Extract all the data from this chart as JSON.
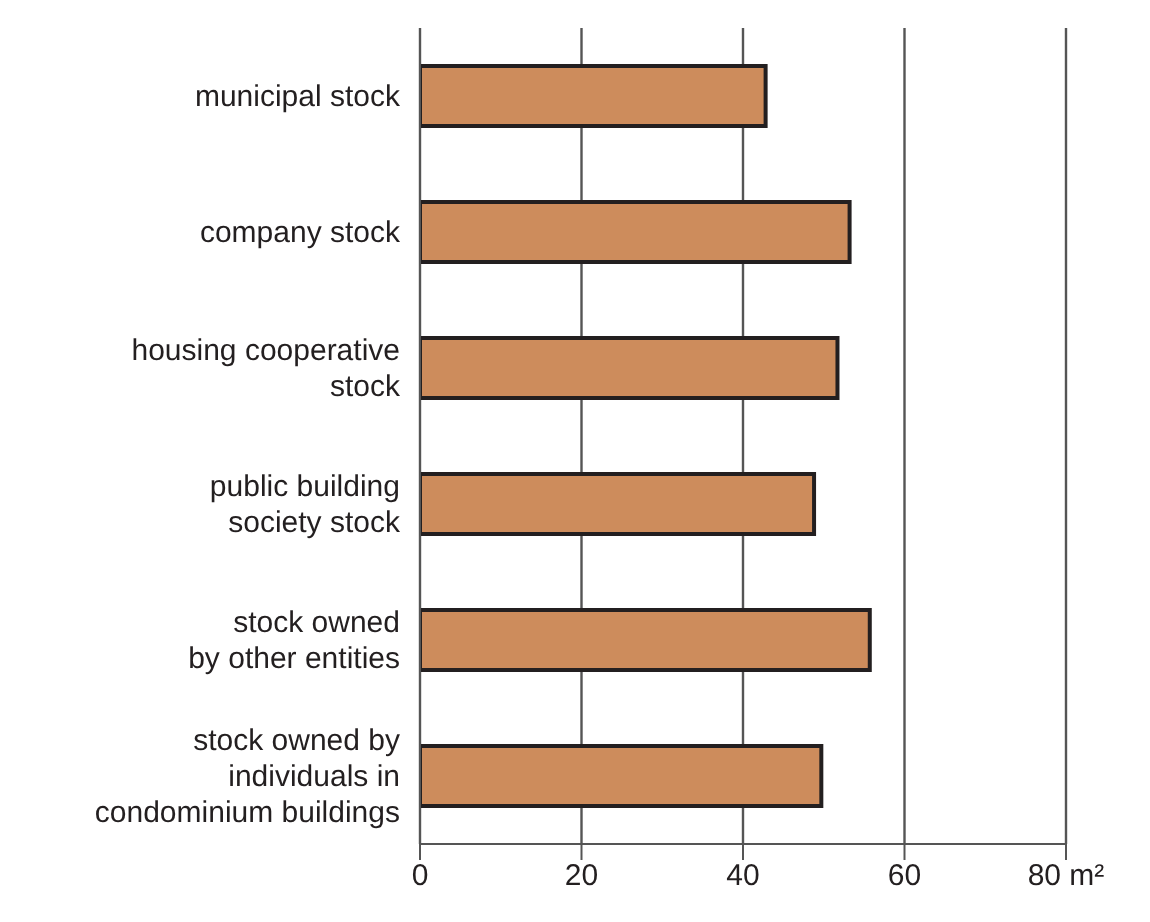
{
  "chart_data": {
    "type": "bar",
    "orientation": "horizontal",
    "categories": [
      "municipal stock",
      "company stock",
      "housing cooperative\nstock",
      "public building\nsociety stock",
      "stock owned\nby other entities",
      "stock owned by\nindividuals in\ncondominium buildings"
    ],
    "values": [
      42.8,
      53.2,
      51.7,
      48.8,
      55.7,
      49.7
    ],
    "color": "#cd8c5c",
    "xlim": [
      0,
      80
    ],
    "xticks": [
      0,
      20,
      40,
      60,
      {
        "value": 80,
        "label": "80 m²"
      }
    ],
    "grid": "x"
  }
}
